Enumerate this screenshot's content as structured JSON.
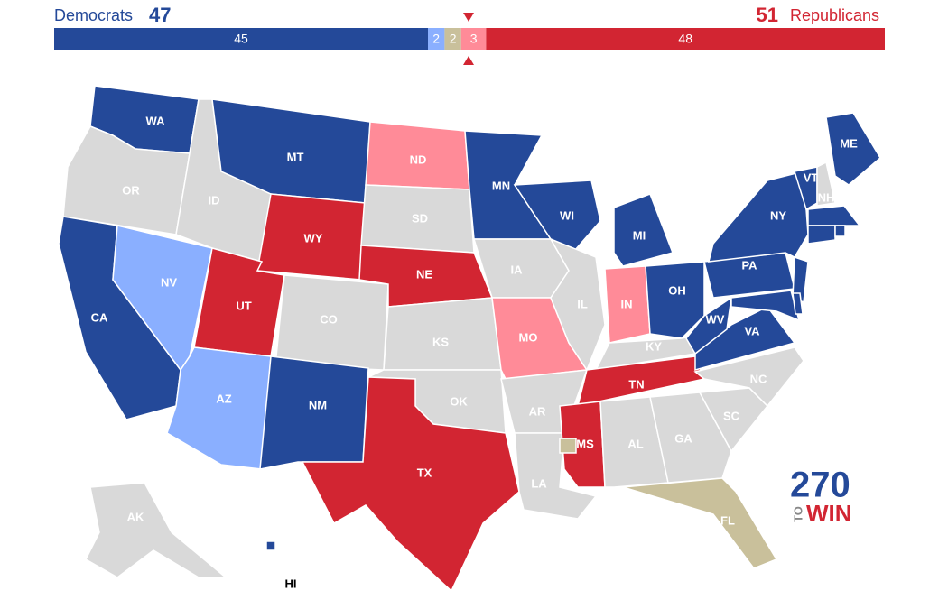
{
  "header": {
    "left_label": "Democrats",
    "left_total": "47",
    "right_total": "51",
    "right_label": "Republicans"
  },
  "bar": {
    "segments": [
      {
        "value": 45,
        "color": "#244999"
      },
      {
        "value": 2,
        "color": "#8aafff"
      },
      {
        "value": 2,
        "color": "#c9c09b"
      },
      {
        "value": 3,
        "color": "#ff8b98"
      },
      {
        "value": 48,
        "color": "#d22532"
      }
    ]
  },
  "states": [
    {
      "label": "WA",
      "color": "#244999"
    },
    {
      "label": "OR",
      "color": "#d9d9d9"
    },
    {
      "label": "CA",
      "color": "#244999"
    },
    {
      "label": "NV",
      "color": "#8aafff"
    },
    {
      "label": "ID",
      "color": "#d9d9d9"
    },
    {
      "label": "MT",
      "color": "#244999"
    },
    {
      "label": "WY",
      "color": "#d22532"
    },
    {
      "label": "UT",
      "color": "#d22532"
    },
    {
      "label": "AZ",
      "color": "#8aafff"
    },
    {
      "label": "CO",
      "color": "#d9d9d9"
    },
    {
      "label": "NM",
      "color": "#244999"
    },
    {
      "label": "ND",
      "color": "#ff8b98"
    },
    {
      "label": "SD",
      "color": "#d9d9d9"
    },
    {
      "label": "NE",
      "color": "#d22532"
    },
    {
      "label": "KS",
      "color": "#d9d9d9"
    },
    {
      "label": "OK",
      "color": "#d9d9d9"
    },
    {
      "label": "TX",
      "color": "#d22532"
    },
    {
      "label": "MN",
      "color": "#244999"
    },
    {
      "label": "IA",
      "color": "#d9d9d9"
    },
    {
      "label": "MO",
      "color": "#ff8b98"
    },
    {
      "label": "AR",
      "color": "#d9d9d9"
    },
    {
      "label": "LA",
      "color": "#d9d9d9"
    },
    {
      "label": "WI",
      "color": "#244999"
    },
    {
      "label": "IL",
      "color": "#d9d9d9"
    },
    {
      "label": "MI",
      "color": "#244999"
    },
    {
      "label": "IN",
      "color": "#ff8b98"
    },
    {
      "label": "OH",
      "color": "#244999"
    },
    {
      "label": "KY",
      "color": "#d9d9d9"
    },
    {
      "label": "TN",
      "color": "#d22532"
    },
    {
      "label": "MS",
      "color": "#d22532"
    },
    {
      "label": "AL",
      "color": "#d9d9d9"
    },
    {
      "label": "GA",
      "color": "#d9d9d9"
    },
    {
      "label": "FL",
      "color": "#c9c09b"
    },
    {
      "label": "SC",
      "color": "#d9d9d9"
    },
    {
      "label": "NC",
      "color": "#d9d9d9"
    },
    {
      "label": "VA",
      "color": "#244999"
    },
    {
      "label": "WV",
      "color": "#244999"
    },
    {
      "label": "PA",
      "color": "#244999"
    },
    {
      "label": "NY",
      "color": "#244999"
    },
    {
      "label": "ME",
      "color": "#244999"
    },
    {
      "label": "VT",
      "color": "#244999"
    },
    {
      "label": "NH",
      "color": "#d9d9d9"
    },
    {
      "label": null,
      "color": "#244999"
    },
    {
      "label": null,
      "color": "#244999"
    },
    {
      "label": null,
      "color": "#244999"
    },
    {
      "label": null,
      "color": "#244999"
    },
    {
      "label": null,
      "color": "#244999"
    },
    {
      "label": null,
      "color": "#244999"
    },
    {
      "label": null,
      "color": "#c9c09b"
    },
    {
      "label": "AK",
      "color": "#d9d9d9"
    },
    {
      "label": "HI",
      "color": "#244999"
    }
  ],
  "logo": {
    "top": "270",
    "side": "TO",
    "main": "WIN"
  }
}
